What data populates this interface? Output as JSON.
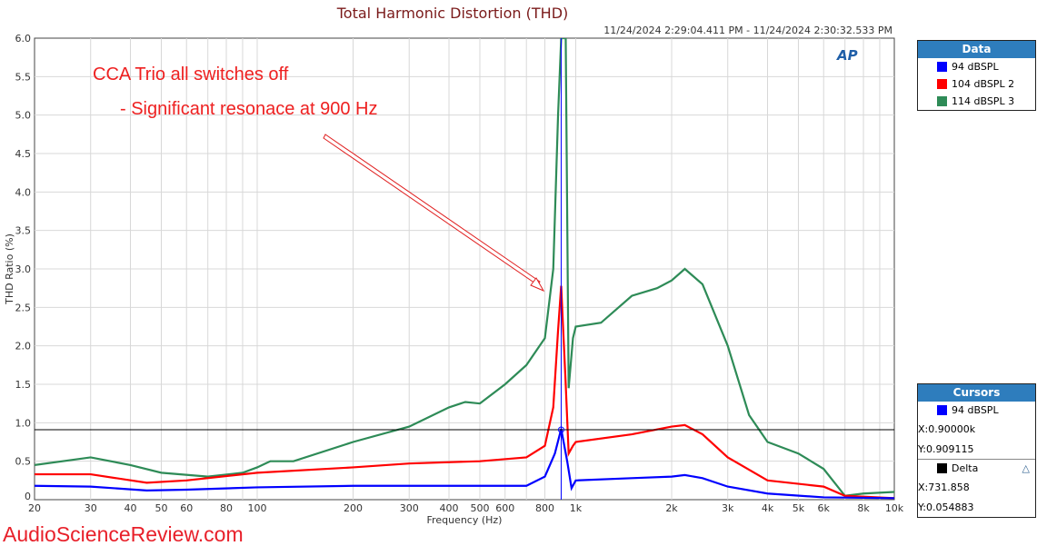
{
  "chart_data": {
    "type": "line",
    "title": "Total Harmonic Distortion (THD)",
    "subtitle": "11/24/2024 2:29:04.411 PM - 11/24/2024 2:30:32.533 PM",
    "xlabel": "Frequency (Hz)",
    "ylabel": "THD Ratio (%)",
    "xscale": "log",
    "xlim": [
      20,
      10000
    ],
    "ylim": [
      0,
      6.0
    ],
    "grid": true,
    "xticks": [
      20,
      30,
      40,
      50,
      60,
      80,
      100,
      200,
      300,
      400,
      500,
      600,
      800,
      1000,
      2000,
      3000,
      4000,
      5000,
      6000,
      8000,
      10000
    ],
    "xtick_labels": [
      "20",
      "30",
      "40",
      "50",
      "60",
      "80",
      "100",
      "200",
      "300",
      "400",
      "500",
      "600",
      "800",
      "1k",
      "2k",
      "3k",
      "4k",
      "5k",
      "6k",
      "8k",
      "10k"
    ],
    "yticks": [
      "0",
      "0.5",
      "1.0",
      "1.5",
      "2.0",
      "2.5",
      "3.0",
      "3.5",
      "4.0",
      "4.5",
      "5.0",
      "5.5",
      "6.0"
    ],
    "series": [
      {
        "name": "94 dBSPL",
        "color": "#0000ff",
        "x": [
          20,
          30,
          45,
          60,
          100,
          200,
          500,
          700,
          800,
          860,
          900,
          940,
          970,
          1000,
          1500,
          2000,
          2200,
          2500,
          3000,
          4000,
          6000,
          10000
        ],
        "y": [
          0.18,
          0.17,
          0.12,
          0.13,
          0.16,
          0.18,
          0.18,
          0.18,
          0.3,
          0.6,
          0.92,
          0.5,
          0.15,
          0.25,
          0.28,
          0.3,
          0.32,
          0.28,
          0.17,
          0.08,
          0.03,
          0.02
        ]
      },
      {
        "name": "104 dBSPL 2",
        "color": "#ff0000",
        "x": [
          20,
          30,
          45,
          60,
          100,
          200,
          300,
          500,
          700,
          800,
          850,
          880,
          900,
          930,
          950,
          980,
          1000,
          1500,
          2000,
          2200,
          2500,
          3000,
          4000,
          6000,
          7000,
          10000
        ],
        "y": [
          0.33,
          0.33,
          0.22,
          0.25,
          0.35,
          0.42,
          0.47,
          0.5,
          0.55,
          0.7,
          1.2,
          2.2,
          2.78,
          1.5,
          0.6,
          0.7,
          0.75,
          0.85,
          0.95,
          0.97,
          0.85,
          0.55,
          0.25,
          0.17,
          0.05,
          0.02
        ]
      },
      {
        "name": "114  dBSPL 3",
        "color": "#2e8b57",
        "x": [
          20,
          30,
          40,
          50,
          70,
          90,
          100,
          110,
          130,
          200,
          300,
          400,
          450,
          500,
          600,
          700,
          800,
          850,
          880,
          900,
          930,
          950,
          980,
          1000,
          1200,
          1500,
          1800,
          2000,
          2200,
          2500,
          3000,
          3500,
          4000,
          5000,
          6000,
          7000,
          8000,
          10000
        ],
        "y": [
          0.45,
          0.55,
          0.45,
          0.35,
          0.3,
          0.35,
          0.42,
          0.5,
          0.5,
          0.75,
          0.95,
          1.2,
          1.27,
          1.25,
          1.5,
          1.75,
          2.1,
          3.0,
          5.0,
          6.0,
          6.0,
          1.45,
          2.1,
          2.25,
          2.3,
          2.65,
          2.75,
          2.85,
          3.0,
          2.8,
          2.0,
          1.1,
          0.75,
          0.6,
          0.4,
          0.05,
          0.08,
          0.1
        ]
      }
    ],
    "annotations": [
      "CCA Trio all switches off",
      "-   Significant resonace at 900 Hz"
    ],
    "cursor": {
      "x": 900,
      "y": 0.909115
    }
  },
  "legend": {
    "title": "Data",
    "items": [
      {
        "label": "94 dBSPL",
        "color": "#0000ff"
      },
      {
        "label": "104 dBSPL 2",
        "color": "#ff0000"
      },
      {
        "label": "114  dBSPL 3",
        "color": "#2e8b57"
      }
    ]
  },
  "cursors": {
    "title": "Cursors",
    "series": "94 dBSPL",
    "x": "X:0.90000k",
    "y": "Y:0.909115",
    "delta_label": "Delta",
    "dx": "X:731.858",
    "dy": "Y:0.054883"
  },
  "logo": "AP",
  "watermark": "AudioScienceReview.com"
}
